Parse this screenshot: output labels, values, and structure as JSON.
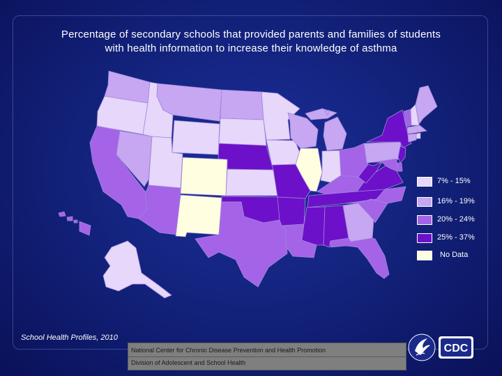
{
  "title_line1": "Percentage of secondary schools that provided parents and families of students",
  "title_line2": "with health information to increase their knowledge of asthma",
  "legend": [
    {
      "label": "7% - 15%",
      "color": "#e6d7fb"
    },
    {
      "label": "16% - 19%",
      "color": "#c7a6f2"
    },
    {
      "label": "20% - 24%",
      "color": "#a563e8"
    },
    {
      "label": "25% - 37%",
      "color": "#6c10c9"
    },
    {
      "label": "No Data",
      "color": "#fffee0"
    }
  ],
  "source": "School Health Profiles, 2010",
  "footer": {
    "line1": "National Center for Chronic Disease Prevention and Health Promotion",
    "line2": "Division of Adolescent and School Health"
  },
  "logo": {
    "text": "CDC",
    "icon": "hhs-eagle-icon"
  },
  "map_data": {
    "WA": "c2",
    "OR": "c1",
    "CA": "c3",
    "NV": "c2",
    "ID": "c1",
    "MT": "c2",
    "WY": "c1",
    "UT": "c1",
    "AZ": "c3",
    "CO": "nd",
    "NM": "nd",
    "ND": "c2",
    "SD": "c1",
    "NE": "c4",
    "KS": "c1",
    "OK": "c4",
    "TX": "c3",
    "MN": "c1",
    "IA": "c1",
    "MO": "c4",
    "AR": "c4",
    "LA": "c3",
    "WI": "c2",
    "IL": "nd",
    "MI": "c2",
    "IN": "c1",
    "OH": "c3",
    "KY": "c3",
    "TN": "c4",
    "MS": "c4",
    "AL": "c4",
    "GA": "c2",
    "FL": "c3",
    "SC": "c3",
    "NC": "c3",
    "VA": "c4",
    "WV": "c4",
    "PA": "c2",
    "NY": "c4",
    "VT": "c3",
    "NH": "c1",
    "ME": "c2",
    "MA": "c2",
    "RI": "c1",
    "CT": "c2",
    "NJ": "c4",
    "DE": "c3",
    "MD": "c3",
    "AK": "c1",
    "HI": "c3"
  }
}
